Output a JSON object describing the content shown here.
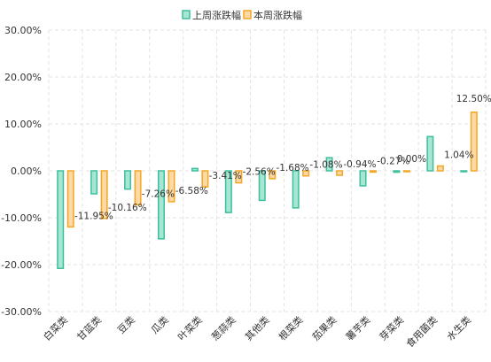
{
  "chart_data": {
    "type": "bar",
    "categories": [
      "白菜类",
      "甘蓝类",
      "豆类",
      "瓜类",
      "叶菜类",
      "葱蒜类",
      "其他类",
      "根菜类",
      "茄果类",
      "薯芋类",
      "芽菜类",
      "食用菌类",
      "水生类"
    ],
    "series": [
      {
        "name": "上周涨跌幅",
        "values": [
          -20.8,
          -4.9,
          -3.9,
          -14.5,
          0.5,
          -8.9,
          -6.3,
          -7.9,
          2.8,
          -3.2,
          -0.3,
          7.3,
          0.0
        ],
        "color": "#3dbf9c",
        "fill": "#a8e6d4"
      },
      {
        "name": "本周涨跌幅",
        "values": [
          -11.95,
          -10.16,
          -7.26,
          -6.58,
          -3.41,
          -2.56,
          -1.68,
          -1.08,
          -0.94,
          -0.27,
          0.0,
          1.04,
          12.5
        ],
        "labels": [
          "-11.95%",
          "-10.16%",
          "-7.26%",
          "-6.58%",
          "-3.41%",
          "-2.56%",
          "-1.68%",
          "-1.08%",
          "-0.94%",
          "-0.27%",
          "0.00%",
          "1.04%",
          "12.50%"
        ],
        "color": "#f5a623",
        "fill": "#fdd9a8"
      }
    ],
    "y_ticks": [
      "30.00%",
      "20.00%",
      "10.00%",
      "0.00%",
      "-10.00%",
      "-20.00%",
      "-30.00%"
    ],
    "ylim": [
      -30,
      30
    ],
    "grid": true,
    "legend_position": "top-center",
    "title": "",
    "xlabel": "",
    "ylabel": ""
  }
}
